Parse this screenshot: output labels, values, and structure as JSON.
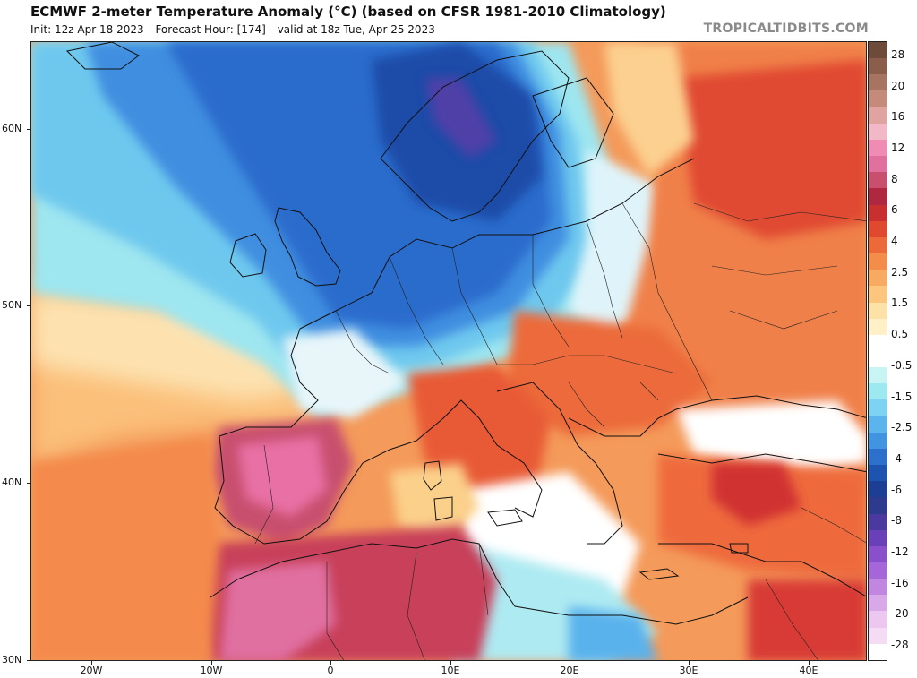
{
  "header": {
    "title": "ECMWF 2-meter Temperature Anomaly (°C) (based on CFSR 1981-2010 Climatology)",
    "init": "Init: 12z Apr 18 2023",
    "forecast_hour": "Forecast Hour: [174]",
    "valid": "valid at 18z Tue, Apr 25 2023",
    "brand": "TROPICALTIDBITS.COM"
  },
  "map": {
    "lat_labels": [
      "60N",
      "50N",
      "40N",
      "30N"
    ],
    "lon_labels": [
      "20W",
      "10W",
      "0",
      "10E",
      "20E",
      "30E",
      "40E"
    ]
  },
  "colorbar": {
    "labels": [
      "28",
      "20",
      "16",
      "12",
      "8",
      "6",
      "4",
      "2.5",
      "1.5",
      "0.5",
      "-0.5",
      "-1.5",
      "-2.5",
      "-4",
      "-6",
      "-8",
      "-12",
      "-16",
      "-20",
      "-28"
    ],
    "colors": [
      "#6e4a3a",
      "#8a5e4a",
      "#a87462",
      "#c48a7c",
      "#e0a4a0",
      "#f2b8c8",
      "#f08cb4",
      "#e0709e",
      "#c8506e",
      "#b02840",
      "#c83030",
      "#e04830",
      "#ec6a3a",
      "#f48c4a",
      "#f8aa62",
      "#fcc67e",
      "#fde2a8",
      "#fff0c8",
      "#ffffff",
      "#ffffff",
      "#c8f4f4",
      "#9ceaf0",
      "#7cd4f2",
      "#5cb4ec",
      "#4094e0",
      "#2c70cc",
      "#1c54b0",
      "#1c3e94",
      "#2e3a8e",
      "#4a3aa0",
      "#6a40b8",
      "#8a50cc",
      "#a466d8",
      "#c086e0",
      "#d8a8e8",
      "#ecc8f0",
      "#f4dcf4",
      "#ffffff"
    ]
  }
}
